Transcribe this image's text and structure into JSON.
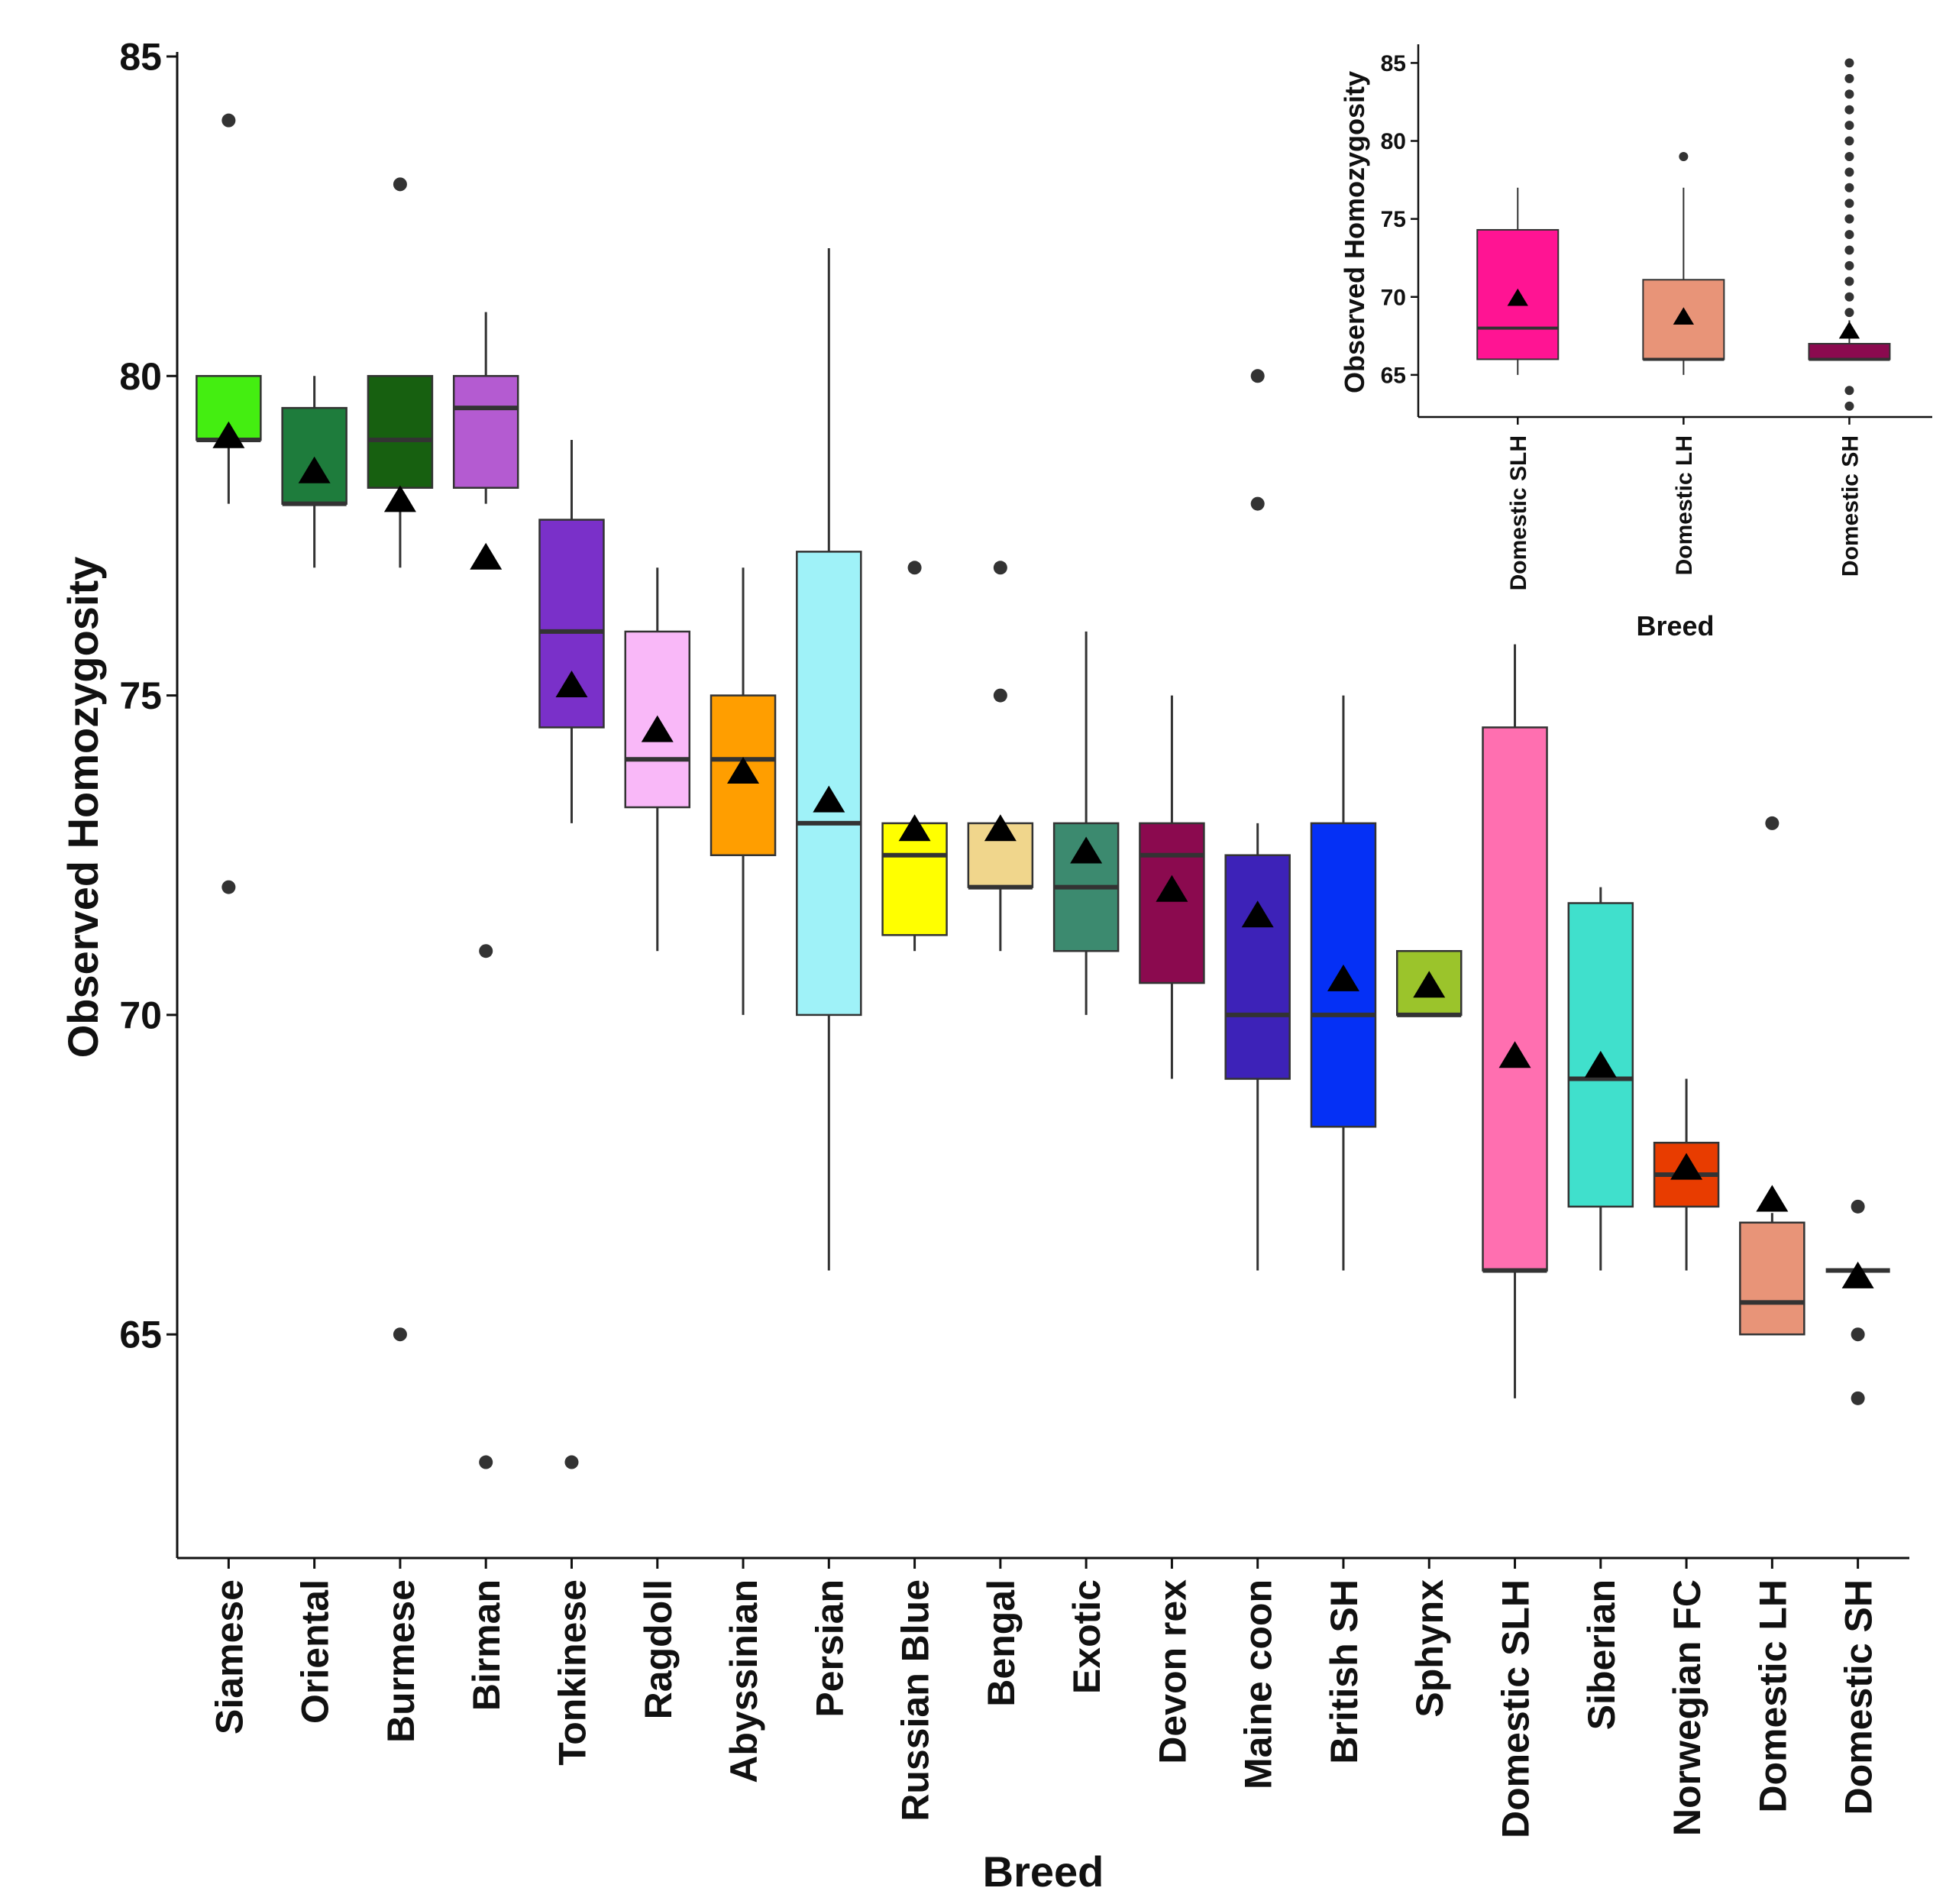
{
  "chart_data": [
    {
      "type": "box",
      "title": "",
      "xlabel": "Breed",
      "ylabel": "Observed Homozygosity",
      "ylim": [
        61.5,
        85
      ],
      "yticks": [
        65,
        70,
        75,
        80,
        85
      ],
      "grid": false,
      "legend": "none",
      "mean_marker": "triangle",
      "categories": [
        "Siamese",
        "Oriental",
        "Burmese",
        "Birman",
        "Tonkinese",
        "Ragdoll",
        "Abyssinian",
        "Persian",
        "Russian Blue",
        "Bengal",
        "Exotic",
        "Devon rex",
        "Maine coon",
        "British SH",
        "Sphynx",
        "Domestic SLH",
        "Siberian",
        "Norwegian FC",
        "Domestic LH",
        "Domestic SH"
      ],
      "boxes": [
        {
          "name": "Siamese",
          "color": "#44ee11",
          "whisker_low": 78,
          "q1": 79,
          "median": 79,
          "q3": 80,
          "whisker_high": 80,
          "mean": 79.05,
          "outliers": [
            84,
            72
          ]
        },
        {
          "name": "Oriental",
          "color": "#1e7c3c",
          "whisker_low": 77,
          "q1": 78,
          "median": 78,
          "q3": 79.5,
          "whisker_high": 80,
          "mean": 78.5,
          "outliers": []
        },
        {
          "name": "Burmese",
          "color": "#176010",
          "whisker_low": 77,
          "q1": 78.25,
          "median": 79,
          "q3": 80,
          "whisker_high": 80,
          "mean": 78.05,
          "outliers": [
            83,
            65
          ]
        },
        {
          "name": "Birman",
          "color": "#b45bd1",
          "whisker_low": 78,
          "q1": 78.25,
          "median": 79.5,
          "q3": 80,
          "whisker_high": 81,
          "mean": 77.15,
          "outliers": [
            71,
            63
          ]
        },
        {
          "name": "Tonkinese",
          "color": "#7a30c9",
          "whisker_low": 73,
          "q1": 74.5,
          "median": 76,
          "q3": 77.75,
          "whisker_high": 79,
          "mean": 75.15,
          "outliers": [
            63
          ]
        },
        {
          "name": "Ragdoll",
          "color": "#f9b8f8",
          "whisker_low": 71,
          "q1": 73.25,
          "median": 74,
          "q3": 76,
          "whisker_high": 77,
          "mean": 74.45,
          "outliers": []
        },
        {
          "name": "Abyssinian",
          "color": "#ff9e00",
          "whisker_low": 70,
          "q1": 72.5,
          "median": 74,
          "q3": 75,
          "whisker_high": 77,
          "mean": 73.8,
          "outliers": []
        },
        {
          "name": "Persian",
          "color": "#9ff2f8",
          "whisker_low": 66,
          "q1": 70,
          "median": 73,
          "q3": 77.25,
          "whisker_high": 82,
          "mean": 73.35,
          "outliers": []
        },
        {
          "name": "Russian Blue",
          "color": "#ffff00",
          "whisker_low": 71,
          "q1": 71.25,
          "median": 72.5,
          "q3": 73,
          "whisker_high": 73,
          "mean": 72.9,
          "outliers": [
            77
          ]
        },
        {
          "name": "Bengal",
          "color": "#f0d68c",
          "whisker_low": 71,
          "q1": 72,
          "median": 72,
          "q3": 73,
          "whisker_high": 73,
          "mean": 72.9,
          "outliers": [
            77,
            75
          ]
        },
        {
          "name": "Exotic",
          "color": "#3c8a6f",
          "whisker_low": 70,
          "q1": 71,
          "median": 72,
          "q3": 73,
          "whisker_high": 76,
          "mean": 72.55,
          "outliers": []
        },
        {
          "name": "Devon rex",
          "color": "#8b0a4f",
          "whisker_low": 69,
          "q1": 70.5,
          "median": 72.5,
          "q3": 73,
          "whisker_high": 75,
          "mean": 71.95,
          "outliers": []
        },
        {
          "name": "Maine coon",
          "color": "#3d22b8",
          "whisker_low": 66,
          "q1": 69,
          "median": 70,
          "q3": 72.5,
          "whisker_high": 73,
          "mean": 71.55,
          "outliers": [
            80,
            78
          ]
        },
        {
          "name": "British SH",
          "color": "#0530f5",
          "whisker_low": 66,
          "q1": 68.25,
          "median": 70,
          "q3": 73,
          "whisker_high": 75,
          "mean": 70.55,
          "outliers": []
        },
        {
          "name": "Sphynx",
          "color": "#9bc42b",
          "whisker_low": 70,
          "q1": 70,
          "median": 70,
          "q3": 71,
          "whisker_high": 71,
          "mean": 70.45,
          "outliers": []
        },
        {
          "name": "Domestic SLH",
          "color": "#ff6fb0",
          "whisker_low": 64,
          "q1": 66,
          "median": 66,
          "q3": 74.5,
          "whisker_high": 75.8,
          "mean": 69.35,
          "outliers": []
        },
        {
          "name": "Siberian",
          "color": "#40e0cc",
          "whisker_low": 66,
          "q1": 67,
          "median": 69,
          "q3": 71.75,
          "whisker_high": 72,
          "mean": 69.2,
          "outliers": []
        },
        {
          "name": "Norwegian FC",
          "color": "#e83c00",
          "whisker_low": 66,
          "q1": 67,
          "median": 67.5,
          "q3": 68,
          "whisker_high": 69,
          "mean": 67.6,
          "outliers": []
        },
        {
          "name": "Domestic LH",
          "color": "#e89478",
          "whisker_low": 65,
          "q1": 65,
          "median": 65.5,
          "q3": 66.75,
          "whisker_high": 66.9,
          "mean": 67.1,
          "outliers": [
            73
          ]
        },
        {
          "name": "Domestic SH",
          "color": "#8b0a4f",
          "whisker_low": 66,
          "q1": 66,
          "median": 66,
          "q3": 66,
          "whisker_high": 66,
          "mean": 65.9,
          "outliers": [
            67,
            65,
            64
          ]
        }
      ]
    },
    {
      "type": "box",
      "title": "",
      "xlabel": "Breed",
      "ylabel": "Observed Homozygosity",
      "ylim": [
        62.3,
        86
      ],
      "yticks": [
        65,
        70,
        75,
        80,
        85
      ],
      "grid": false,
      "legend": "none",
      "placement": "inset top-right",
      "mean_marker": "triangle",
      "categories": [
        "Domestic SLH",
        "Domestic LH",
        "Domestic SH"
      ],
      "boxes": [
        {
          "name": "Domestic SLH",
          "color": "#ff1493",
          "whisker_low": 65,
          "q1": 66,
          "median": 68,
          "q3": 74.3,
          "whisker_high": 77,
          "mean": 69.9,
          "outliers": []
        },
        {
          "name": "Domestic LH",
          "color": "#e89478",
          "whisker_low": 65,
          "q1": 66,
          "median": 66,
          "q3": 71.1,
          "whisker_high": 77,
          "mean": 68.7,
          "outliers": [
            79
          ]
        },
        {
          "name": "Domestic SH",
          "color": "#8b0a4f",
          "whisker_low": 66,
          "q1": 66,
          "median": 66,
          "q3": 67,
          "whisker_high": 68.5,
          "mean": 67.8,
          "outliers": [
            85,
            84,
            83,
            82,
            81,
            80,
            79,
            78,
            77,
            76,
            75,
            74,
            73,
            72,
            71,
            70,
            69,
            64,
            63
          ]
        }
      ]
    }
  ]
}
